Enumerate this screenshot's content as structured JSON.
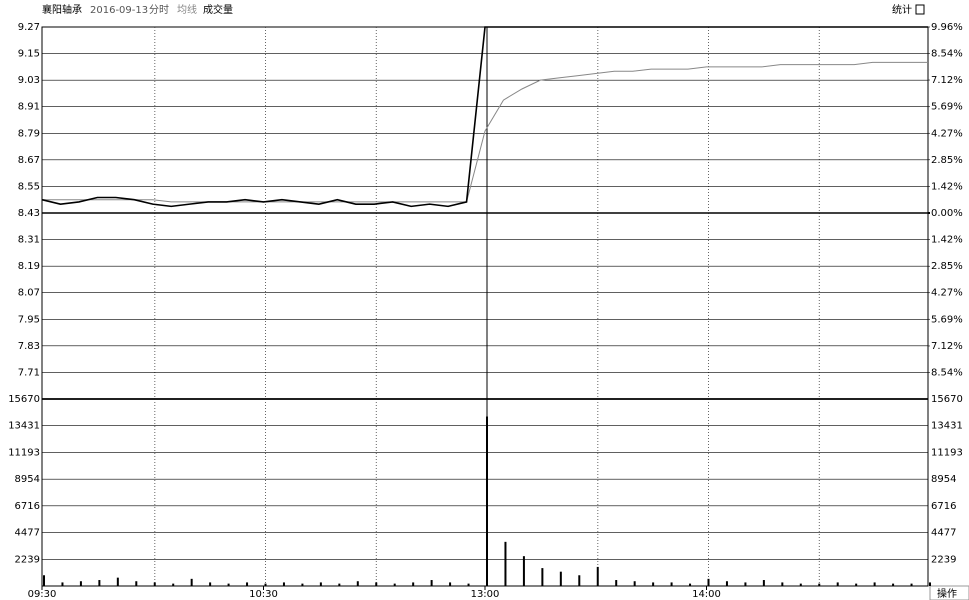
{
  "header": {
    "name": "襄阳轴承",
    "date": "2016-09-13",
    "stats": "统计"
  },
  "footer": {
    "button": "操作"
  },
  "chart_data": [
    {
      "type": "line",
      "x": [
        "09:30",
        "09:35",
        "09:40",
        "09:45",
        "09:50",
        "09:55",
        "10:00",
        "10:05",
        "10:10",
        "10:15",
        "10:20",
        "10:25",
        "10:30",
        "10:35",
        "10:40",
        "10:45",
        "10:50",
        "10:55",
        "11:00",
        "11:05",
        "11:10",
        "11:15",
        "11:20",
        "11:25",
        "13:00",
        "13:05",
        "13:10",
        "13:15",
        "13:20",
        "13:25",
        "13:30",
        "13:35",
        "13:40",
        "13:45",
        "13:50",
        "13:55",
        "14:00",
        "14:05",
        "14:10",
        "14:15",
        "14:20",
        "14:25",
        "14:30",
        "14:35",
        "14:40",
        "14:45",
        "14:50",
        "14:55",
        "15:00"
      ],
      "series": [
        {
          "name": "分时",
          "color": "#000000",
          "values": [
            8.49,
            8.47,
            8.48,
            8.5,
            8.5,
            8.49,
            8.47,
            8.46,
            8.47,
            8.48,
            8.48,
            8.49,
            8.48,
            8.49,
            8.48,
            8.47,
            8.49,
            8.47,
            8.47,
            8.48,
            8.46,
            8.47,
            8.46,
            8.48,
            9.27,
            9.27,
            9.27,
            9.27,
            9.27,
            9.27,
            9.27,
            9.27,
            9.27,
            9.27,
            9.27,
            9.27,
            9.27,
            9.27,
            9.27,
            9.27,
            9.27,
            9.27,
            9.27,
            9.27,
            9.27,
            9.27,
            9.27,
            9.27,
            9.27
          ]
        },
        {
          "name": "均线",
          "color": "#888888",
          "values": [
            8.49,
            8.49,
            8.49,
            8.49,
            8.49,
            8.49,
            8.49,
            8.48,
            8.48,
            8.48,
            8.48,
            8.48,
            8.48,
            8.48,
            8.48,
            8.48,
            8.48,
            8.48,
            8.48,
            8.48,
            8.48,
            8.48,
            8.48,
            8.48,
            8.8,
            8.94,
            8.99,
            9.03,
            9.04,
            9.05,
            9.06,
            9.07,
            9.07,
            9.08,
            9.08,
            9.08,
            9.09,
            9.09,
            9.09,
            9.09,
            9.1,
            9.1,
            9.1,
            9.1,
            9.1,
            9.11,
            9.11,
            9.11,
            9.11
          ]
        }
      ],
      "ylim": [
        7.59,
        9.27
      ],
      "yticks": [
        9.27,
        9.15,
        9.03,
        8.91,
        8.79,
        8.67,
        8.55,
        8.43,
        8.31,
        8.19,
        8.07,
        7.95,
        7.83,
        7.71
      ],
      "y2lim": [
        -9.96,
        9.96
      ],
      "y2ticks": [
        {
          "value": 9.96,
          "label": "9.96%"
        },
        {
          "value": 8.54,
          "label": "8.54%"
        },
        {
          "value": 7.12,
          "label": "7.12%"
        },
        {
          "value": 5.69,
          "label": "5.69%"
        },
        {
          "value": 4.27,
          "label": "4.27%"
        },
        {
          "value": 2.85,
          "label": "2.85%"
        },
        {
          "value": 1.42,
          "label": "1.42%"
        },
        {
          "value": 0,
          "label": "0.00%"
        },
        {
          "value": -1.42,
          "label": "1.42%"
        },
        {
          "value": -2.85,
          "label": "2.85%"
        },
        {
          "value": -4.27,
          "label": "4.27%"
        },
        {
          "value": -5.69,
          "label": "5.69%"
        },
        {
          "value": -7.12,
          "label": "7.12%"
        },
        {
          "value": -8.54,
          "label": "8.54%"
        }
      ]
    },
    {
      "type": "bar",
      "name": "成交量",
      "color": "#000000",
      "x": [
        "09:30",
        "09:35",
        "09:40",
        "09:45",
        "09:50",
        "09:55",
        "10:00",
        "10:05",
        "10:10",
        "10:15",
        "10:20",
        "10:25",
        "10:30",
        "10:35",
        "10:40",
        "10:45",
        "10:50",
        "10:55",
        "11:00",
        "11:05",
        "11:10",
        "11:15",
        "11:20",
        "11:25",
        "13:00",
        "13:05",
        "13:10",
        "13:15",
        "13:20",
        "13:25",
        "13:30",
        "13:35",
        "13:40",
        "13:45",
        "13:50",
        "13:55",
        "14:00",
        "14:05",
        "14:10",
        "14:15",
        "14:20",
        "14:25",
        "14:30",
        "14:35",
        "14:40",
        "14:45",
        "14:50",
        "14:55",
        "15:00"
      ],
      "values": [
        900,
        300,
        400,
        500,
        700,
        400,
        300,
        200,
        600,
        300,
        200,
        300,
        200,
        300,
        200,
        300,
        200,
        400,
        300,
        200,
        300,
        500,
        300,
        200,
        14200,
        3700,
        2500,
        1500,
        1200,
        900,
        1600,
        500,
        400,
        300,
        300,
        200,
        600,
        400,
        300,
        500,
        300,
        200,
        200,
        300,
        200,
        300,
        200,
        200,
        300
      ],
      "ylim": [
        0,
        15670
      ],
      "yticks": [
        15670,
        13431,
        11193,
        8954,
        6716,
        4477,
        2239
      ],
      "xticks": [
        "09:30",
        "10:30",
        "13:00",
        "14:00"
      ]
    }
  ]
}
